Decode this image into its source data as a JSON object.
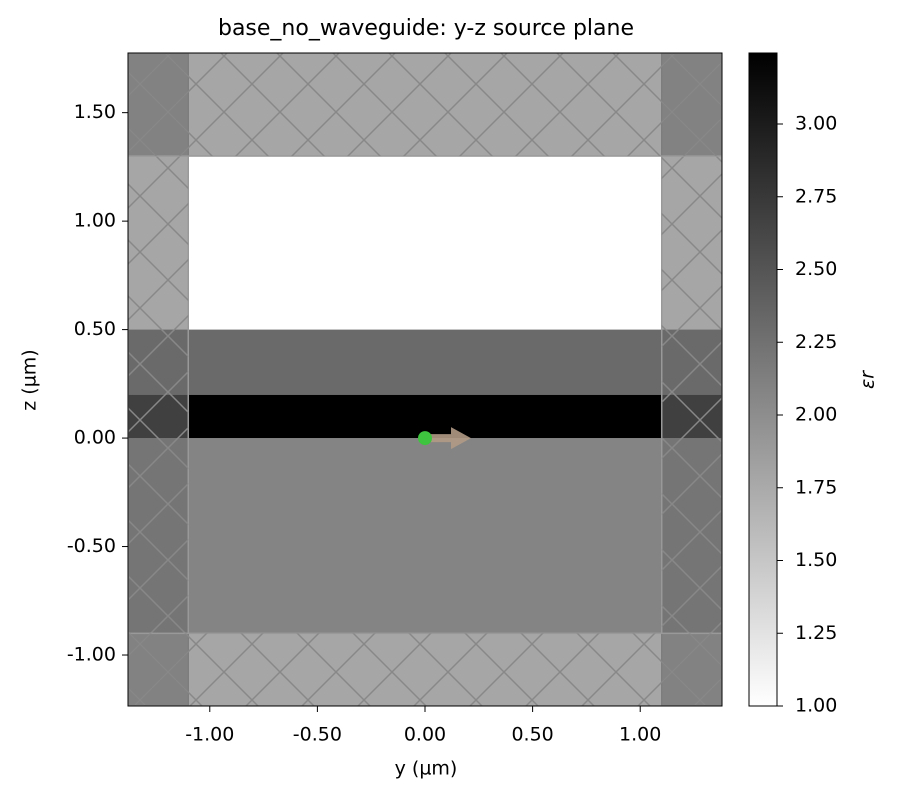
{
  "chart_data": {
    "type": "permittivity",
    "title": "base_no_waveguide: y-z source plane",
    "x_label": "y (µm)",
    "y_label": "z (µm)",
    "colorbar_label": "εr",
    "xlim": [
      -1.38,
      1.38
    ],
    "ylim": [
      -1.235,
      1.775
    ],
    "xticks": [
      {
        "value": -1,
        "label": "-1.00"
      },
      {
        "value": -0.5,
        "label": "-0.50"
      },
      {
        "value": 0,
        "label": "0.00"
      },
      {
        "value": 0.5,
        "label": "0.50"
      },
      {
        "value": 1,
        "label": "1.00"
      }
    ],
    "yticks": [
      {
        "value": -1,
        "label": "-1.00"
      },
      {
        "value": -0.5,
        "label": "-0.50"
      },
      {
        "value": 0,
        "label": "0.00"
      },
      {
        "value": 0.5,
        "label": "0.50"
      },
      {
        "value": 1,
        "label": "1.00"
      },
      {
        "value": 1.5,
        "label": "1.50"
      }
    ],
    "clim": [
      1,
      3.244
    ],
    "cticks": [
      {
        "value": 1,
        "label": "1.00"
      },
      {
        "value": 1.25,
        "label": "1.25"
      },
      {
        "value": 1.5,
        "label": "1.50"
      },
      {
        "value": 1.75,
        "label": "1.75"
      },
      {
        "value": 2,
        "label": "2.00"
      },
      {
        "value": 2.25,
        "label": "2.25"
      },
      {
        "value": 2.5,
        "label": "2.50"
      },
      {
        "value": 2.75,
        "label": "2.75"
      },
      {
        "value": 3,
        "label": "3.00"
      }
    ],
    "structures": [
      {
        "y_range": [
          -1.38,
          1.38
        ],
        "z_range": [
          -0.9,
          0
        ],
        "eps": 2.085
      },
      {
        "y_range": [
          -1.38,
          1.38
        ],
        "z_range": [
          0,
          0.2
        ],
        "eps": 3.244
      },
      {
        "y_range": [
          -1.38,
          1.38
        ],
        "z_range": [
          0.2,
          0.5
        ],
        "eps": 2.31
      }
    ],
    "pml": [
      {
        "y_range": [
          -1.38,
          -1.1
        ],
        "z_range": [
          -1.235,
          1.775
        ]
      },
      {
        "y_range": [
          1.1,
          1.38
        ],
        "z_range": [
          -1.235,
          1.775
        ]
      },
      {
        "y_range": [
          -1.38,
          1.38
        ],
        "z_range": [
          1.3,
          1.775
        ]
      },
      {
        "y_range": [
          -1.38,
          1.38
        ],
        "z_range": [
          -1.235,
          -0.9
        ]
      }
    ],
    "source": {
      "y": 0,
      "z": 0,
      "color": "#3ec43e",
      "arrow_color": "#b09a85"
    }
  }
}
